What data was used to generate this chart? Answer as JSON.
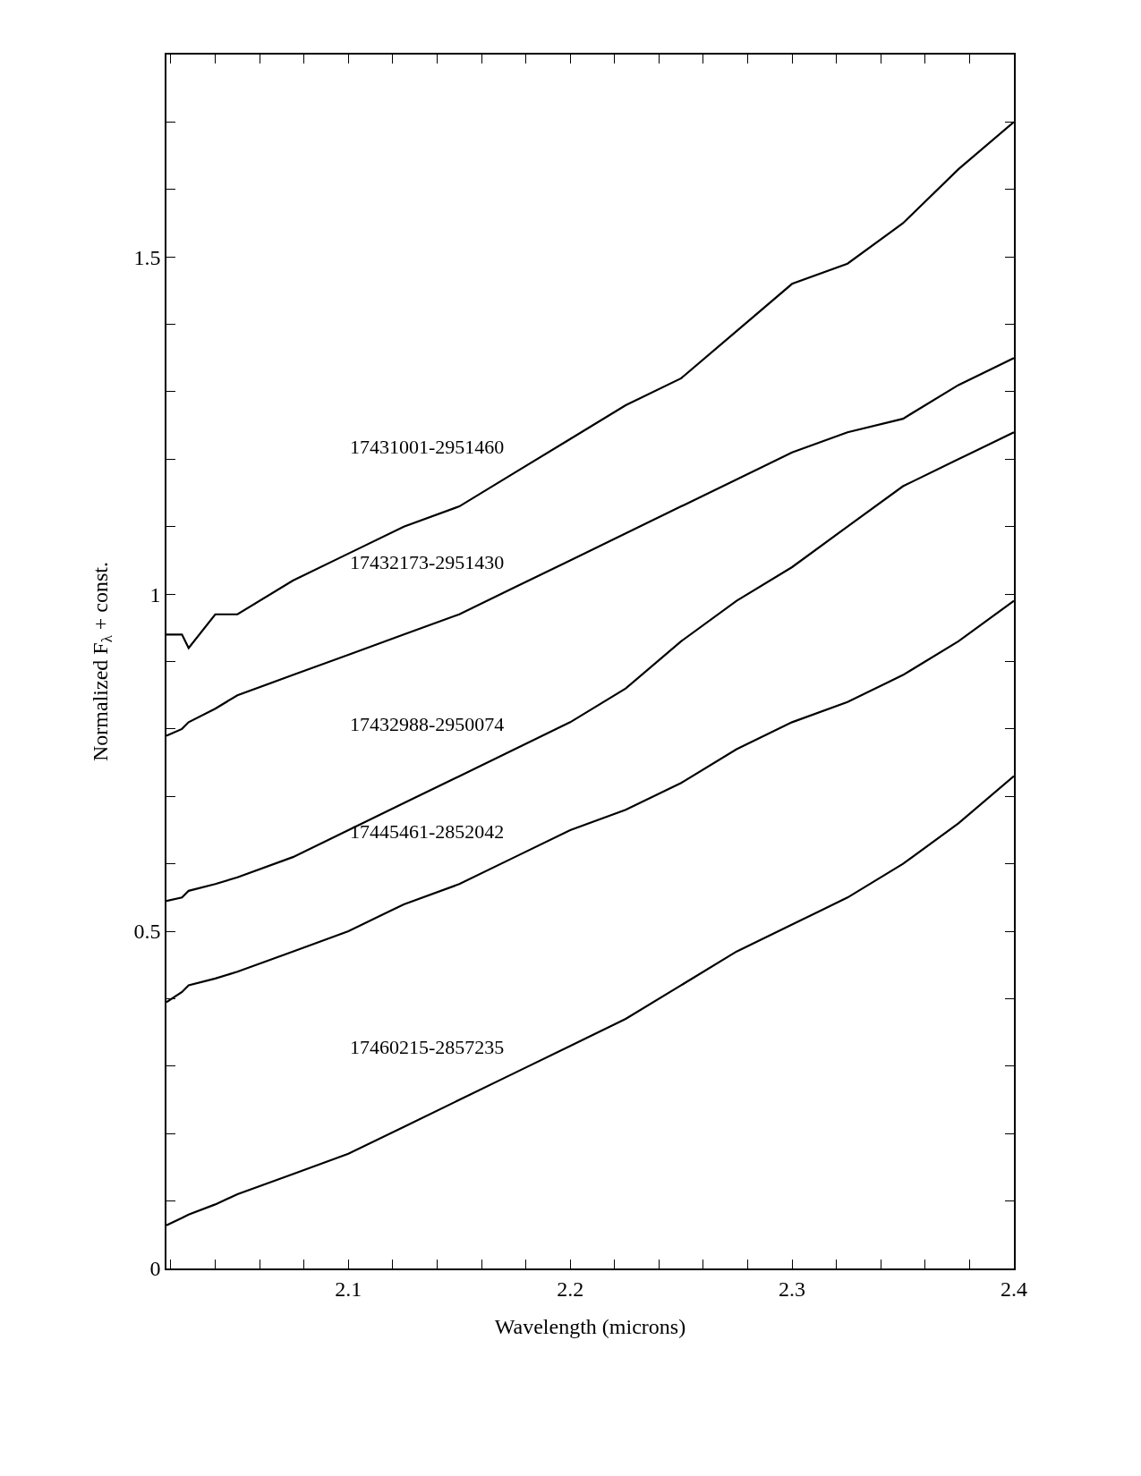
{
  "chart_data": {
    "type": "line",
    "xlabel": "Wavelength (microns)",
    "ylabel": "Normalized F$_{λ}$ + const.",
    "xlim": [
      2.018,
      2.4
    ],
    "ylim": [
      0,
      1.8
    ],
    "xticks": [
      {
        "value": 2.02,
        "label": null
      },
      {
        "value": 2.04,
        "label": null
      },
      {
        "value": 2.06,
        "label": null
      },
      {
        "value": 2.08,
        "label": null
      },
      2.1,
      {
        "value": 2.12,
        "label": null
      },
      {
        "value": 2.14,
        "label": null
      },
      {
        "value": 2.16,
        "label": null
      },
      {
        "value": 2.18,
        "label": null
      },
      2.2,
      {
        "value": 2.22,
        "label": null
      },
      {
        "value": 2.24,
        "label": null
      },
      {
        "value": 2.26,
        "label": null
      },
      {
        "value": 2.28,
        "label": null
      },
      2.3,
      {
        "value": 2.32,
        "label": null
      },
      {
        "value": 2.34,
        "label": null
      },
      {
        "value": 2.36,
        "label": null
      },
      {
        "value": 2.38,
        "label": null
      },
      2.4
    ],
    "yticks": [
      0,
      {
        "value": 0.1,
        "label": null
      },
      {
        "value": 0.2,
        "label": null
      },
      {
        "value": 0.3,
        "label": null
      },
      {
        "value": 0.4,
        "label": null
      },
      0.5,
      {
        "value": 0.6,
        "label": null
      },
      {
        "value": 0.7,
        "label": null
      },
      {
        "value": 0.8,
        "label": null
      },
      {
        "value": 0.9,
        "label": null
      },
      1,
      {
        "value": 1.1,
        "label": null
      },
      {
        "value": 1.2,
        "label": null
      },
      {
        "value": 1.3,
        "label": null
      },
      {
        "value": 1.4,
        "label": null
      },
      1.5,
      {
        "value": 1.6,
        "label": null
      },
      {
        "value": 1.7,
        "label": null
      }
    ],
    "x": [
      2.018,
      2.025,
      2.028,
      2.04,
      2.05,
      2.075,
      2.1,
      2.125,
      2.15,
      2.175,
      2.2,
      2.225,
      2.25,
      2.275,
      2.3,
      2.325,
      2.35,
      2.375,
      2.4
    ],
    "series": [
      {
        "color": "#000000",
        "values": [
          0.94,
          0.94,
          0.92,
          0.97,
          0.97,
          1.02,
          1.06,
          1.1,
          1.13,
          1.18,
          1.23,
          1.28,
          1.32,
          1.39,
          1.46,
          1.49,
          1.55,
          1.63,
          1.7
        ]
      },
      {
        "color": "#000000",
        "values": [
          0.79,
          0.8,
          0.81,
          0.83,
          0.85,
          0.88,
          0.91,
          0.94,
          0.97,
          1.01,
          1.05,
          1.09,
          1.13,
          1.17,
          1.21,
          1.24,
          1.26,
          1.31,
          1.35
        ]
      },
      {
        "color": "#000000",
        "values": [
          0.545,
          0.55,
          0.56,
          0.57,
          0.58,
          0.61,
          0.65,
          0.69,
          0.73,
          0.77,
          0.81,
          0.86,
          0.93,
          0.99,
          1.04,
          1.1,
          1.16,
          1.2,
          1.24
        ]
      },
      {
        "color": "#000000",
        "values": [
          0.395,
          0.41,
          0.42,
          0.43,
          0.44,
          0.47,
          0.5,
          0.54,
          0.57,
          0.61,
          0.65,
          0.68,
          0.72,
          0.77,
          0.81,
          0.84,
          0.88,
          0.93,
          0.99
        ]
      },
      {
        "color": "#000000",
        "values": [
          0.064,
          0.075,
          0.08,
          0.095,
          0.11,
          0.14,
          0.17,
          0.21,
          0.25,
          0.29,
          0.33,
          0.37,
          0.42,
          0.47,
          0.51,
          0.55,
          0.6,
          0.66,
          0.73
        ]
      }
    ],
    "annotations": [
      "17431001-2951460",
      "17432173-2951430",
      "17432988-2950074",
      "17445461-2852042",
      "17460215-2857235"
    ]
  }
}
